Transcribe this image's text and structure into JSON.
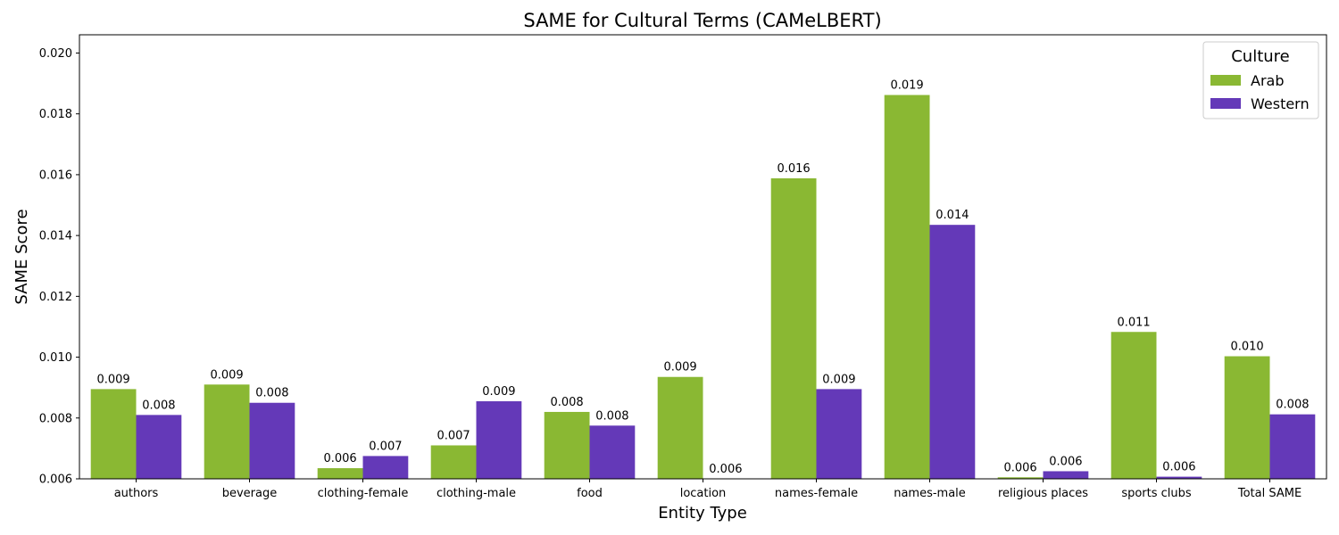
{
  "chart_data": {
    "type": "bar",
    "title": "SAME for Cultural Terms (CAMeLBERT)",
    "xlabel": "Entity Type",
    "ylabel": "SAME Score",
    "ylim": [
      0.006,
      0.0206
    ],
    "yticks": [
      "0.006",
      "0.008",
      "0.010",
      "0.012",
      "0.014",
      "0.016",
      "0.018",
      "0.020"
    ],
    "categories": [
      "authors",
      "beverage",
      "clothing-female",
      "clothing-male",
      "food",
      "location",
      "names-female",
      "names-male",
      "religious places",
      "sports clubs",
      "Total SAME"
    ],
    "series": [
      {
        "name": "Arab",
        "color": "#8ab833",
        "values": [
          0.00895,
          0.0091,
          0.00635,
          0.0071,
          0.0082,
          0.00935,
          0.01588,
          0.01862,
          0.00605,
          0.01083,
          0.01003
        ],
        "labels": [
          "0.009",
          "0.009",
          "0.006",
          "0.007",
          "0.008",
          "0.009",
          "0.016",
          "0.019",
          "0.006",
          "0.011",
          "0.010"
        ]
      },
      {
        "name": "Western",
        "color": "#6439b8",
        "values": [
          0.0081,
          0.0085,
          0.00675,
          0.00855,
          0.00775,
          0.00595,
          0.00895,
          0.01435,
          0.00625,
          0.00607,
          0.00812
        ],
        "labels": [
          "0.008",
          "0.008",
          "0.007",
          "0.009",
          "0.008",
          "0.006",
          "0.009",
          "0.014",
          "0.006",
          "0.006",
          "0.008"
        ]
      }
    ],
    "legend": {
      "title": "Culture",
      "placement": "top-right"
    },
    "grid": false
  }
}
